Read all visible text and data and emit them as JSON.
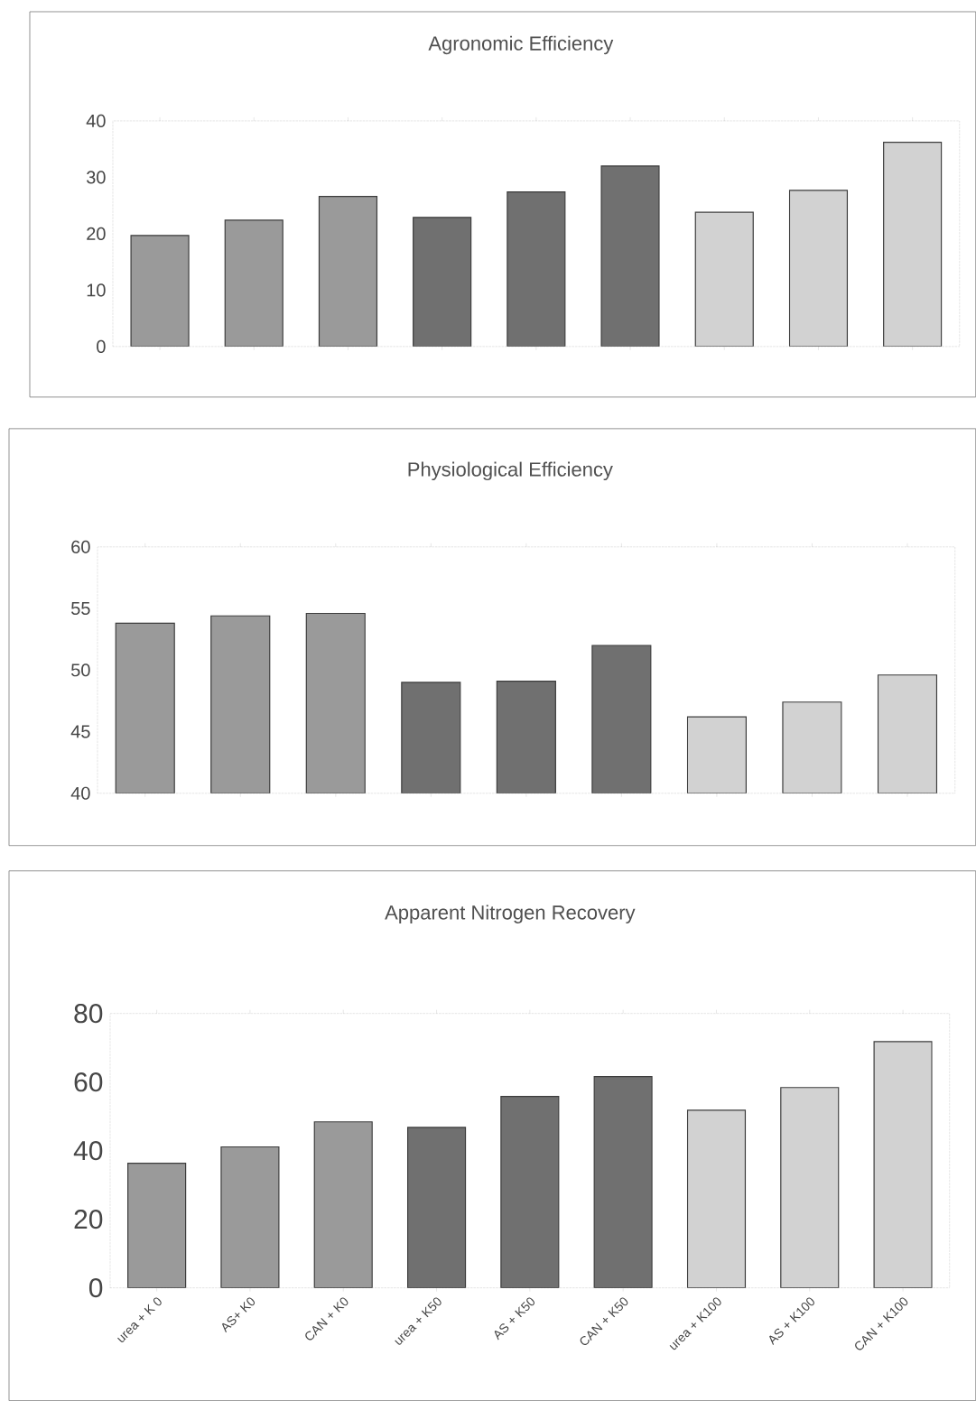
{
  "chart_data": [
    {
      "type": "bar",
      "title": "Agronomic Efficiency",
      "categories": [
        null,
        null,
        null,
        null,
        null,
        null,
        null,
        null,
        null
      ],
      "values": [
        19.7,
        22.4,
        26.6,
        22.9,
        27.4,
        32.0,
        23.8,
        27.7,
        36.2
      ],
      "colors": [
        "#9a9a9a",
        "#9a9a9a",
        "#9a9a9a",
        "#707070",
        "#707070",
        "#707070",
        "#d2d2d2",
        "#d2d2d2",
        "#d2d2d2"
      ],
      "ylim": [
        0,
        40
      ],
      "yticks": [
        0,
        10,
        20,
        30,
        40
      ],
      "tick_labels": "y"
    },
    {
      "type": "bar",
      "title": "Physiological Efficiency",
      "categories": [
        null,
        null,
        null,
        null,
        null,
        null,
        null,
        null,
        null
      ],
      "values": [
        53.8,
        54.4,
        54.6,
        49.0,
        49.1,
        52.0,
        46.2,
        47.4,
        49.6
      ],
      "colors": [
        "#9a9a9a",
        "#9a9a9a",
        "#9a9a9a",
        "#707070",
        "#707070",
        "#707070",
        "#d2d2d2",
        "#d2d2d2",
        "#d2d2d2"
      ],
      "ylim": [
        40,
        60
      ],
      "yticks": [
        40,
        45,
        50,
        55,
        60
      ],
      "tick_labels": "y"
    },
    {
      "type": "bar",
      "title": "Apparent Nitrogen Recovery",
      "categories": [
        "urea + K 0",
        "AS+ K0",
        "CAN + K0",
        "urea + K50",
        "AS + K50",
        "CAN + K50",
        "urea + K100",
        "AS + K100",
        "CAN + K100"
      ],
      "values": [
        36.3,
        41.1,
        48.4,
        46.8,
        55.8,
        61.6,
        51.8,
        58.4,
        71.8
      ],
      "colors": [
        "#9a9a9a",
        "#9a9a9a",
        "#9a9a9a",
        "#707070",
        "#707070",
        "#707070",
        "#d2d2d2",
        "#d2d2d2",
        "#d2d2d2"
      ],
      "ylim": [
        0,
        80
      ],
      "yticks": [
        0,
        20,
        40,
        60,
        80
      ]
    }
  ]
}
